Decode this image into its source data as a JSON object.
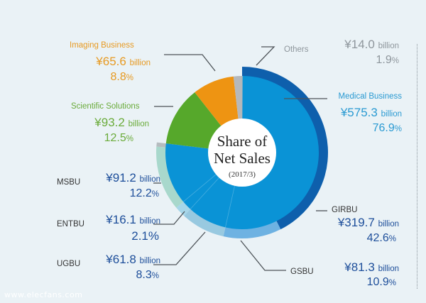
{
  "chart_data": {
    "type": "pie",
    "subtype": "nested-donut",
    "title": "Share of Net Sales",
    "subtitle": "(2017/3)",
    "currency_symbol": "¥",
    "unit": "billion",
    "inner": [
      {
        "name": "Medical Business",
        "value": 575.3,
        "percent": 76.9,
        "color": "#0a93d6",
        "label_color": "#2a9ad2"
      },
      {
        "name": "Scientific Solutions",
        "value": 93.2,
        "percent": 12.5,
        "color": "#56a82b",
        "label_color": "#6aab3a"
      },
      {
        "name": "Imaging Business",
        "value": 65.6,
        "percent": 8.8,
        "color": "#ee9412",
        "label_color": "#e79a22"
      },
      {
        "name": "Others",
        "value": 14.0,
        "percent": 1.9,
        "color": "#b5b8ba",
        "label_color": "#8e969c"
      }
    ],
    "outer": [
      {
        "name": "GIRBU",
        "value": 319.7,
        "percent": 42.6,
        "color": "#0e5fac"
      },
      {
        "name": "GSBU",
        "value": 81.3,
        "percent": 10.9,
        "color": "#6eb2e2"
      },
      {
        "name": "UGBU",
        "value": 61.8,
        "percent": 8.3,
        "color": "#98c9e0"
      },
      {
        "name": "ENTBU",
        "value": 16.1,
        "percent": 2.1,
        "color": "#a6d6e9"
      },
      {
        "name": "MSBU",
        "value": 91.2,
        "percent": 12.2,
        "color": "#a8d8cc"
      }
    ],
    "outer_label_color": "#1d4e9a",
    "outer_name_color": "#333333"
  },
  "watermark": "www.elecfans.com"
}
